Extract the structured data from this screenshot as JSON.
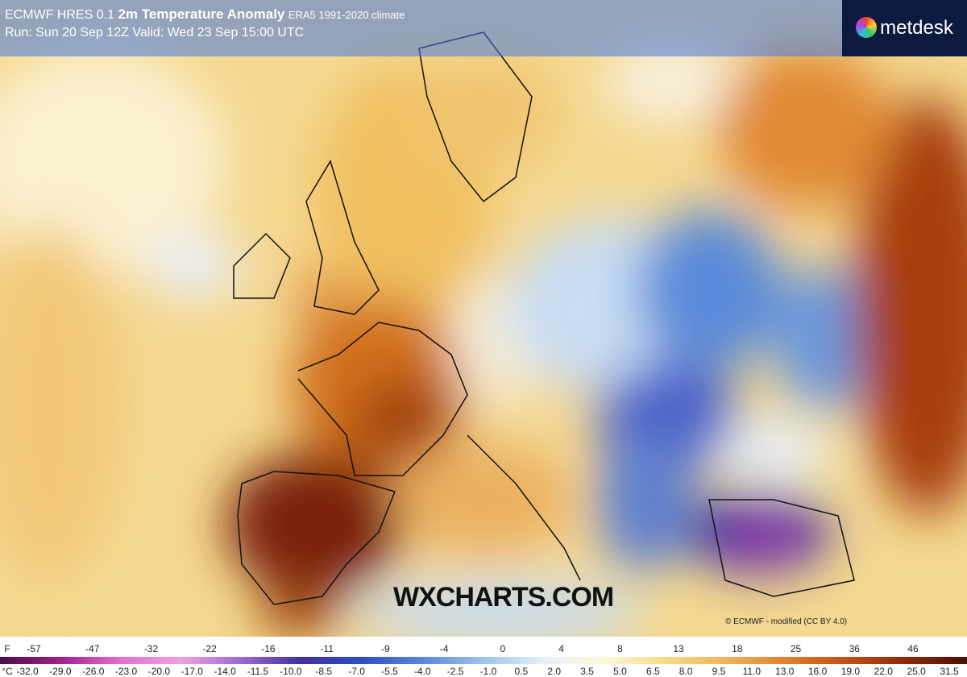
{
  "header": {
    "model": "ECMWF HRES 0.1",
    "title": "2m Temperature Anomaly",
    "climate": "ERA5 1991-2020 climate",
    "run": "Run: Sun 20 Sep 12Z Valid: Wed 23 Sep 15:00 UTC"
  },
  "logo": "metdesk",
  "watermark": "WXCHARTS.COM",
  "credit": "© ECMWF - modified (CC BY 4.0)",
  "legend": {
    "f_unit": "F",
    "f_ticks": [
      "-57",
      "-47",
      "-32",
      "-22",
      "-16",
      "-11",
      "-9",
      "-4",
      "0",
      "4",
      "8",
      "13",
      "18",
      "25",
      "36",
      "46"
    ],
    "c_unit": "°C",
    "c_ticks": [
      "-32.0",
      "-29.0",
      "-26.0",
      "-23.0",
      "-20.0",
      "-17.0",
      "-14.0",
      "-11.5",
      "-10.0",
      "-8.5",
      "-7.0",
      "-5.5",
      "-4.0",
      "-2.5",
      "-1.0",
      "0.5",
      "2.0",
      "3.5",
      "5.0",
      "6.5",
      "8.0",
      "9.5",
      "11.0",
      "13.0",
      "16.0",
      "19.0",
      "22.0",
      "25.0",
      "31.5"
    ]
  }
}
